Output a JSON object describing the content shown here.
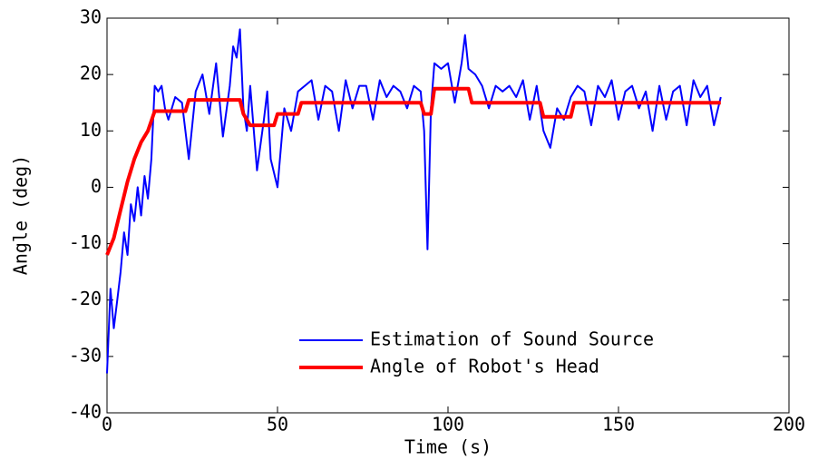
{
  "chart_data": {
    "type": "line",
    "xlabel": "Time (s)",
    "ylabel": "Angle (deg)",
    "xlim": [
      0,
      200
    ],
    "xticks": [
      0,
      50,
      100,
      150,
      200
    ],
    "ylim": [
      -40,
      30
    ],
    "yticks": [
      -40,
      -30,
      -20,
      -10,
      0,
      10,
      20,
      30
    ],
    "legend": "lower right",
    "series": [
      {
        "name": "Estimation of Sound Source",
        "color": "#0000ff",
        "x": [
          0,
          1,
          2,
          3,
          4,
          5,
          6,
          7,
          8,
          9,
          10,
          11,
          12,
          13,
          14,
          15,
          16,
          17,
          18,
          20,
          22,
          24,
          26,
          28,
          30,
          32,
          34,
          36,
          37,
          38,
          39,
          40,
          41,
          42,
          44,
          46,
          47,
          48,
          50,
          52,
          54,
          56,
          58,
          60,
          62,
          64,
          66,
          68,
          70,
          72,
          74,
          76,
          78,
          80,
          82,
          84,
          86,
          88,
          90,
          92,
          93,
          94,
          95,
          96,
          98,
          100,
          102,
          104,
          105,
          106,
          108,
          110,
          112,
          114,
          116,
          118,
          120,
          122,
          124,
          126,
          128,
          130,
          132,
          134,
          136,
          138,
          140,
          142,
          144,
          146,
          148,
          150,
          152,
          154,
          156,
          158,
          160,
          162,
          164,
          166,
          168,
          170,
          172,
          174,
          176,
          178,
          180
        ],
        "values": [
          -33,
          -18,
          -25,
          -20,
          -15,
          -8,
          -12,
          -3,
          -6,
          0,
          -5,
          2,
          -2,
          5,
          18,
          17,
          18,
          14,
          12,
          16,
          15,
          5,
          17,
          20,
          13,
          22,
          9,
          18,
          25,
          23,
          28,
          14,
          10,
          18,
          3,
          12,
          17,
          5,
          0,
          14,
          10,
          17,
          18,
          19,
          12,
          18,
          17,
          10,
          19,
          14,
          18,
          18,
          12,
          19,
          16,
          18,
          17,
          14,
          18,
          17,
          10,
          -11,
          14,
          22,
          21,
          22,
          15,
          22,
          27,
          21,
          20,
          18,
          14,
          18,
          17,
          18,
          16,
          19,
          12,
          18,
          10,
          7,
          14,
          12,
          16,
          18,
          17,
          11,
          18,
          16,
          19,
          12,
          17,
          18,
          14,
          17,
          10,
          18,
          12,
          17,
          18,
          11,
          19,
          16,
          18,
          11,
          16
        ]
      },
      {
        "name": "Angle of Robot's Head",
        "color": "#ff0000",
        "x": [
          0,
          2,
          4,
          6,
          8,
          10,
          12,
          14,
          23,
          24,
          39,
          40,
          42,
          49,
          50,
          56,
          57,
          92,
          93,
          95,
          96,
          106,
          107,
          127,
          128,
          136,
          137,
          180
        ],
        "values": [
          -12,
          -9,
          -4,
          1,
          5,
          8,
          10,
          13.5,
          13.5,
          15.5,
          15.5,
          13,
          11,
          11,
          13,
          13,
          15,
          15,
          13,
          13,
          17.5,
          17.5,
          15,
          15,
          12.5,
          12.5,
          15,
          15
        ]
      }
    ]
  }
}
